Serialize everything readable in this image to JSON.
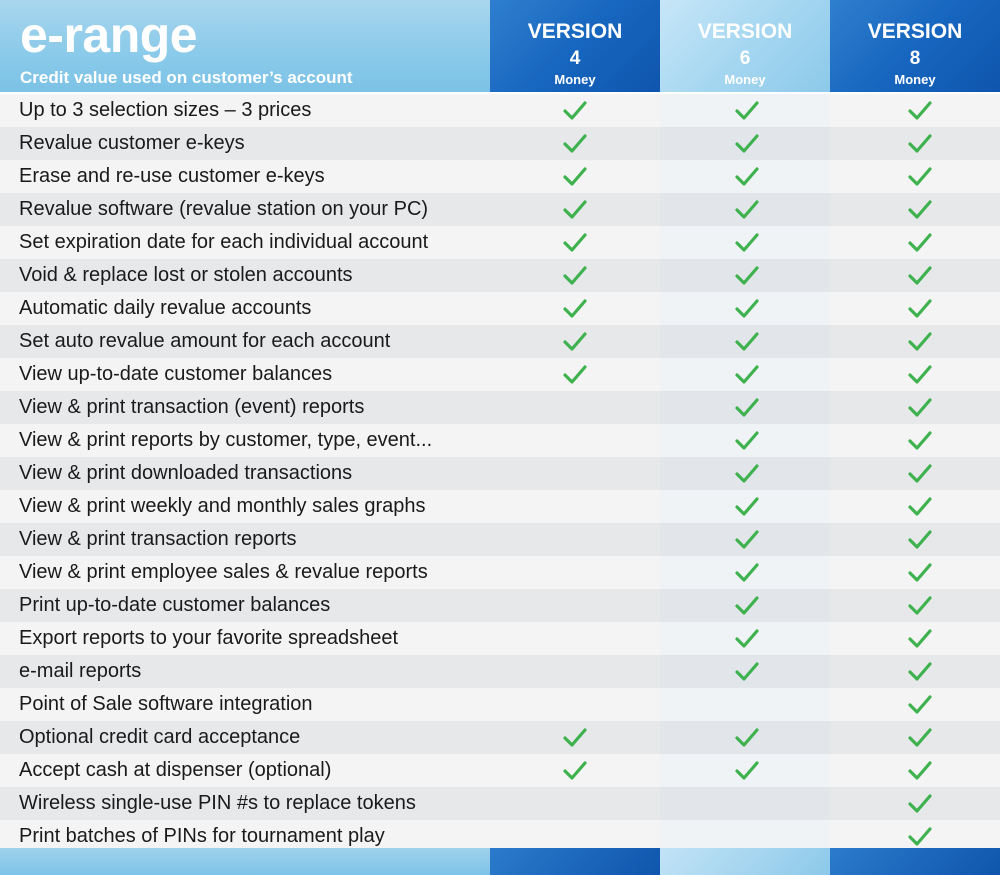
{
  "header": {
    "brand": "e-range",
    "subtitle": "Credit value used on customer’s account",
    "versions": [
      {
        "line1": "VERSION",
        "line2": "4",
        "line3": "Money"
      },
      {
        "line1": "VERSION",
        "line2": "6",
        "line3": "Money"
      },
      {
        "line1": "VERSION",
        "line2": "8",
        "line3": "Money"
      }
    ]
  },
  "colors": {
    "check": "#3fb24f",
    "accent_dark": "#1766bf",
    "accent_light": "#8ccbea"
  },
  "check_icon": "checkmark-icon",
  "features": [
    {
      "label": "Up to 3 selection sizes – 3 prices",
      "v4": true,
      "v6": true,
      "v8": true
    },
    {
      "label": "Revalue customer e-keys",
      "v4": true,
      "v6": true,
      "v8": true
    },
    {
      "label": "Erase and re-use customer e-keys",
      "v4": true,
      "v6": true,
      "v8": true
    },
    {
      "label": "Revalue software (revalue station on your PC)",
      "v4": true,
      "v6": true,
      "v8": true
    },
    {
      "label": "Set expiration date for each individual account",
      "v4": true,
      "v6": true,
      "v8": true
    },
    {
      "label": "Void & replace lost or stolen accounts",
      "v4": true,
      "v6": true,
      "v8": true
    },
    {
      "label": "Automatic daily revalue accounts",
      "v4": true,
      "v6": true,
      "v8": true
    },
    {
      "label": "Set auto revalue amount for each account",
      "v4": true,
      "v6": true,
      "v8": true
    },
    {
      "label": "View up-to-date customer balances",
      "v4": true,
      "v6": true,
      "v8": true
    },
    {
      "label": "View & print transaction (event) reports",
      "v4": false,
      "v6": true,
      "v8": true
    },
    {
      "label": "View & print reports by customer, type, event...",
      "v4": false,
      "v6": true,
      "v8": true
    },
    {
      "label": "View & print downloaded transactions",
      "v4": false,
      "v6": true,
      "v8": true
    },
    {
      "label": "View & print weekly and monthly sales graphs",
      "v4": false,
      "v6": true,
      "v8": true
    },
    {
      "label": "View & print transaction reports",
      "v4": false,
      "v6": true,
      "v8": true
    },
    {
      "label": "View & print employee sales & revalue reports",
      "v4": false,
      "v6": true,
      "v8": true
    },
    {
      "label": "Print up-to-date customer balances",
      "v4": false,
      "v6": true,
      "v8": true
    },
    {
      "label": "Export reports to your favorite spreadsheet",
      "v4": false,
      "v6": true,
      "v8": true
    },
    {
      "label": "e-mail reports",
      "v4": false,
      "v6": true,
      "v8": true
    },
    {
      "label": "Point of Sale software integration",
      "v4": false,
      "v6": false,
      "v8": true
    },
    {
      "label": "Optional credit card acceptance",
      "v4": true,
      "v6": true,
      "v8": true
    },
    {
      "label": "Accept cash at dispenser (optional)",
      "v4": true,
      "v6": true,
      "v8": true
    },
    {
      "label": "Wireless single-use PIN #s to replace tokens",
      "v4": false,
      "v6": false,
      "v8": true
    },
    {
      "label": "Print batches of PINs for tournament play",
      "v4": false,
      "v6": false,
      "v8": true
    }
  ]
}
